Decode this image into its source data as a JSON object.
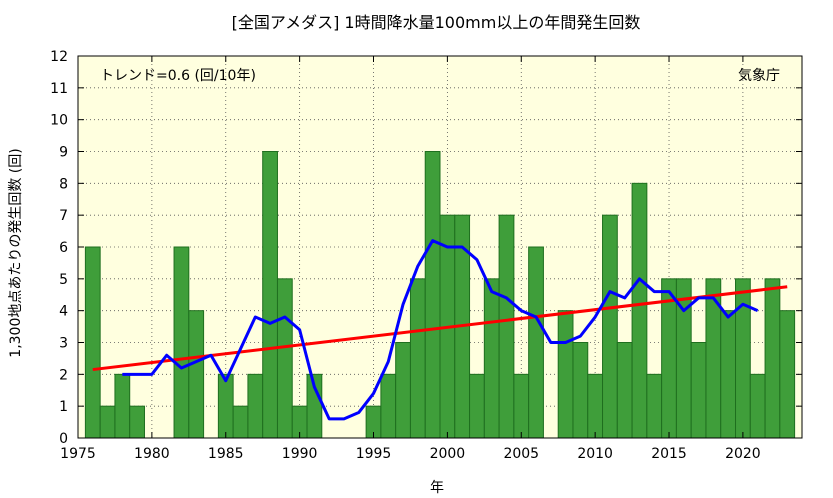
{
  "chart_data": {
    "type": "bar",
    "title": "[全国アメダス] 1時間降水量100mm以上の年間発生回数",
    "xlabel": "年",
    "ylabel": "1,300地点あたりの発生回数 (回)",
    "annotation": "トレンド=0.6 (回/10年)",
    "source": "気象庁",
    "xlim": [
      1975,
      2024
    ],
    "ylim": [
      0,
      12
    ],
    "x_ticks": [
      1975,
      1980,
      1985,
      1990,
      1995,
      2000,
      2005,
      2010,
      2015,
      2020
    ],
    "y_ticks": [
      0,
      1,
      2,
      3,
      4,
      5,
      6,
      7,
      8,
      9,
      10,
      11,
      12
    ],
    "grid": true,
    "years": [
      1976,
      1977,
      1978,
      1979,
      1980,
      1981,
      1982,
      1983,
      1984,
      1985,
      1986,
      1987,
      1988,
      1989,
      1990,
      1991,
      1992,
      1993,
      1994,
      1995,
      1996,
      1997,
      1998,
      1999,
      2000,
      2001,
      2002,
      2003,
      2004,
      2005,
      2006,
      2007,
      2008,
      2009,
      2010,
      2011,
      2012,
      2013,
      2014,
      2015,
      2016,
      2017,
      2018,
      2019,
      2020,
      2021,
      2022,
      2023
    ],
    "values": [
      6,
      1,
      2,
      1,
      0,
      0,
      6,
      4,
      0,
      2,
      1,
      2,
      9,
      5,
      1,
      2,
      0,
      0,
      0,
      1,
      2,
      3,
      5,
      9,
      7,
      7,
      2,
      5,
      7,
      2,
      6,
      0,
      4,
      3,
      2,
      7,
      3,
      8,
      2,
      5,
      5,
      3,
      5,
      4,
      5,
      2,
      5,
      4
    ],
    "moving_average": {
      "years": [
        1978,
        1979,
        1980,
        1981,
        1982,
        1983,
        1984,
        1985,
        1986,
        1987,
        1988,
        1989,
        1990,
        1991,
        1992,
        1993,
        1994,
        1995,
        1996,
        1997,
        1998,
        1999,
        2000,
        2001,
        2002,
        2003,
        2004,
        2005,
        2006,
        2007,
        2008,
        2009,
        2010,
        2011,
        2012,
        2013,
        2014,
        2015,
        2016,
        2017,
        2018,
        2019,
        2020,
        2021
      ],
      "values": [
        2.0,
        2.0,
        2.0,
        2.6,
        2.2,
        2.4,
        2.6,
        1.8,
        2.8,
        3.8,
        3.6,
        3.8,
        3.4,
        1.6,
        0.6,
        0.6,
        0.8,
        1.4,
        2.4,
        4.2,
        5.4,
        6.2,
        6.0,
        6.0,
        5.6,
        4.6,
        4.4,
        4.0,
        3.8,
        3.0,
        3.0,
        3.2,
        3.8,
        4.6,
        4.4,
        5.0,
        4.6,
        4.6,
        4.0,
        4.4,
        4.4,
        3.8,
        4.2,
        4.0
      ]
    },
    "trend_line": {
      "x": [
        1976,
        2023
      ],
      "y": [
        2.15,
        4.75
      ]
    },
    "colors": {
      "bar_fill": "#3f9e3a",
      "bar_stroke": "#1f6f1f",
      "moving_average": "#0000ff",
      "trend": "#ff0000",
      "plot_bg": "#ffffdf",
      "grid": "#555555"
    }
  }
}
